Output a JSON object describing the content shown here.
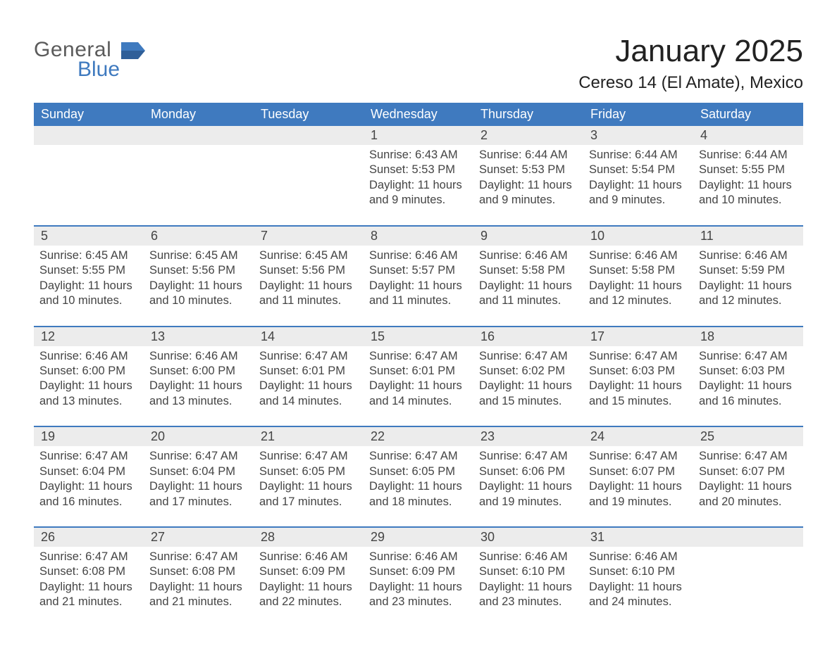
{
  "logo": {
    "line1": "General",
    "line2": "Blue",
    "shape_color": "#3f7abf",
    "text_gray": "#5b5b5b"
  },
  "title": "January 2025",
  "location": "Cereso 14 (El Amate), Mexico",
  "colors": {
    "accent": "#3f7abf",
    "daynum_bg": "#ececec",
    "text": "#333333",
    "background": "#ffffff"
  },
  "day_of_week_labels": [
    "Sunday",
    "Monday",
    "Tuesday",
    "Wednesday",
    "Thursday",
    "Friday",
    "Saturday"
  ],
  "labels": {
    "sunrise": "Sunrise:",
    "sunset": "Sunset:",
    "daylight": "Daylight:"
  },
  "weeks": [
    [
      {
        "day": null
      },
      {
        "day": null
      },
      {
        "day": null
      },
      {
        "day": 1,
        "sunrise": "6:43 AM",
        "sunset": "5:53 PM",
        "daylight": "11 hours and 9 minutes."
      },
      {
        "day": 2,
        "sunrise": "6:44 AM",
        "sunset": "5:53 PM",
        "daylight": "11 hours and 9 minutes."
      },
      {
        "day": 3,
        "sunrise": "6:44 AM",
        "sunset": "5:54 PM",
        "daylight": "11 hours and 9 minutes."
      },
      {
        "day": 4,
        "sunrise": "6:44 AM",
        "sunset": "5:55 PM",
        "daylight": "11 hours and 10 minutes."
      }
    ],
    [
      {
        "day": 5,
        "sunrise": "6:45 AM",
        "sunset": "5:55 PM",
        "daylight": "11 hours and 10 minutes."
      },
      {
        "day": 6,
        "sunrise": "6:45 AM",
        "sunset": "5:56 PM",
        "daylight": "11 hours and 10 minutes."
      },
      {
        "day": 7,
        "sunrise": "6:45 AM",
        "sunset": "5:56 PM",
        "daylight": "11 hours and 11 minutes."
      },
      {
        "day": 8,
        "sunrise": "6:46 AM",
        "sunset": "5:57 PM",
        "daylight": "11 hours and 11 minutes."
      },
      {
        "day": 9,
        "sunrise": "6:46 AM",
        "sunset": "5:58 PM",
        "daylight": "11 hours and 11 minutes."
      },
      {
        "day": 10,
        "sunrise": "6:46 AM",
        "sunset": "5:58 PM",
        "daylight": "11 hours and 12 minutes."
      },
      {
        "day": 11,
        "sunrise": "6:46 AM",
        "sunset": "5:59 PM",
        "daylight": "11 hours and 12 minutes."
      }
    ],
    [
      {
        "day": 12,
        "sunrise": "6:46 AM",
        "sunset": "6:00 PM",
        "daylight": "11 hours and 13 minutes."
      },
      {
        "day": 13,
        "sunrise": "6:46 AM",
        "sunset": "6:00 PM",
        "daylight": "11 hours and 13 minutes."
      },
      {
        "day": 14,
        "sunrise": "6:47 AM",
        "sunset": "6:01 PM",
        "daylight": "11 hours and 14 minutes."
      },
      {
        "day": 15,
        "sunrise": "6:47 AM",
        "sunset": "6:01 PM",
        "daylight": "11 hours and 14 minutes."
      },
      {
        "day": 16,
        "sunrise": "6:47 AM",
        "sunset": "6:02 PM",
        "daylight": "11 hours and 15 minutes."
      },
      {
        "day": 17,
        "sunrise": "6:47 AM",
        "sunset": "6:03 PM",
        "daylight": "11 hours and 15 minutes."
      },
      {
        "day": 18,
        "sunrise": "6:47 AM",
        "sunset": "6:03 PM",
        "daylight": "11 hours and 16 minutes."
      }
    ],
    [
      {
        "day": 19,
        "sunrise": "6:47 AM",
        "sunset": "6:04 PM",
        "daylight": "11 hours and 16 minutes."
      },
      {
        "day": 20,
        "sunrise": "6:47 AM",
        "sunset": "6:04 PM",
        "daylight": "11 hours and 17 minutes."
      },
      {
        "day": 21,
        "sunrise": "6:47 AM",
        "sunset": "6:05 PM",
        "daylight": "11 hours and 17 minutes."
      },
      {
        "day": 22,
        "sunrise": "6:47 AM",
        "sunset": "6:05 PM",
        "daylight": "11 hours and 18 minutes."
      },
      {
        "day": 23,
        "sunrise": "6:47 AM",
        "sunset": "6:06 PM",
        "daylight": "11 hours and 19 minutes."
      },
      {
        "day": 24,
        "sunrise": "6:47 AM",
        "sunset": "6:07 PM",
        "daylight": "11 hours and 19 minutes."
      },
      {
        "day": 25,
        "sunrise": "6:47 AM",
        "sunset": "6:07 PM",
        "daylight": "11 hours and 20 minutes."
      }
    ],
    [
      {
        "day": 26,
        "sunrise": "6:47 AM",
        "sunset": "6:08 PM",
        "daylight": "11 hours and 21 minutes."
      },
      {
        "day": 27,
        "sunrise": "6:47 AM",
        "sunset": "6:08 PM",
        "daylight": "11 hours and 21 minutes."
      },
      {
        "day": 28,
        "sunrise": "6:46 AM",
        "sunset": "6:09 PM",
        "daylight": "11 hours and 22 minutes."
      },
      {
        "day": 29,
        "sunrise": "6:46 AM",
        "sunset": "6:09 PM",
        "daylight": "11 hours and 23 minutes."
      },
      {
        "day": 30,
        "sunrise": "6:46 AM",
        "sunset": "6:10 PM",
        "daylight": "11 hours and 23 minutes."
      },
      {
        "day": 31,
        "sunrise": "6:46 AM",
        "sunset": "6:10 PM",
        "daylight": "11 hours and 24 minutes."
      },
      {
        "day": null
      }
    ]
  ]
}
